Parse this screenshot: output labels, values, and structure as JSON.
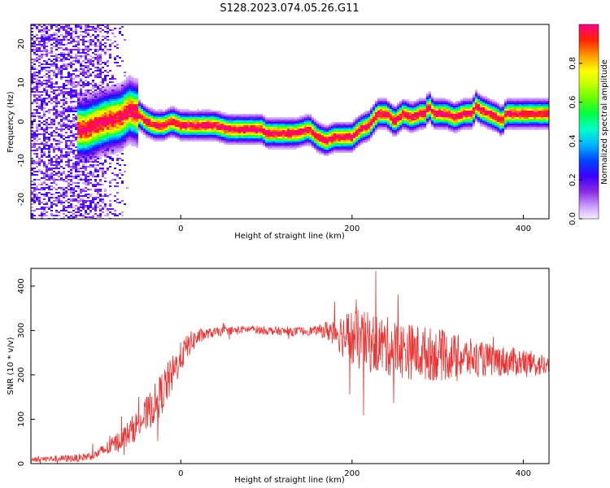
{
  "title": "S128.2023.074.05.26.G11",
  "chart_data": [
    {
      "type": "heatmap",
      "xlabel": "Height of straight line (km)",
      "ylabel": "Frequency (Hz)",
      "xlim": [
        -175,
        430
      ],
      "ylim": [
        -25,
        25
      ],
      "x_ticks": [
        0,
        200,
        400
      ],
      "y_ticks": [
        -20,
        -10,
        0,
        10,
        20
      ],
      "y_tick_labels": [
        "-20",
        "-10",
        "0",
        "10",
        "20"
      ],
      "colorbar": {
        "label": "Normalized spectral amplitude",
        "ticks": [
          0.0,
          0.2,
          0.4,
          0.6,
          0.8
        ],
        "tick_labels": [
          "0.0",
          "0.2",
          "0.4",
          "0.6",
          "0.8"
        ],
        "range": [
          0,
          1
        ],
        "colors": [
          "#f2e6ff",
          "#cc99ff",
          "#8a2be2",
          "#3b00ff",
          "#0044ff",
          "#00c8ff",
          "#00ff88",
          "#22ff00",
          "#b4ff00",
          "#ffff00",
          "#ff9900",
          "#ff2200",
          "#ff0088"
        ]
      },
      "ridge": {
        "x": [
          -110,
          -90,
          -70,
          -60,
          -50,
          -40,
          -30,
          -20,
          -10,
          0,
          20,
          40,
          55,
          60,
          80,
          95,
          100,
          120,
          135,
          150,
          160,
          170,
          180,
          190,
          200,
          210,
          220,
          230,
          240,
          250,
          260,
          270,
          280,
          285,
          290,
          295,
          300,
          310,
          320,
          330,
          340,
          345,
          350,
          360,
          370,
          375,
          380,
          390,
          400,
          410,
          420,
          430
        ],
        "y": [
          -2,
          0,
          1,
          3,
          2,
          0,
          -1,
          -1,
          0,
          -1,
          -1,
          -1,
          -2,
          -2,
          -2,
          -2,
          -3,
          -3,
          -3,
          -2,
          -4,
          -5,
          -4,
          -4,
          -4,
          -2,
          -1,
          2,
          2,
          0,
          2,
          1,
          2,
          2,
          4,
          2,
          2,
          2,
          1,
          2,
          2,
          4,
          3,
          2,
          1,
          0,
          2,
          2,
          2,
          2,
          2,
          2
        ]
      }
    },
    {
      "type": "line",
      "xlabel": "Height of straight line (km)",
      "ylabel": "SNR (10 * v/v)",
      "xlim": [
        -175,
        430
      ],
      "ylim": [
        0,
        440
      ],
      "x_ticks": [
        0,
        200,
        400
      ],
      "y_ticks": [
        0,
        100,
        200,
        300,
        400
      ],
      "color": "#ee3333",
      "envelope": {
        "x": [
          -175,
          -120,
          -100,
          -80,
          -60,
          -40,
          -25,
          -10,
          0,
          10,
          20,
          30,
          40,
          60,
          80,
          100,
          130,
          160,
          180,
          200,
          230,
          260,
          300,
          350,
          400,
          430
        ],
        "y": [
          10,
          12,
          20,
          40,
          70,
          110,
          150,
          200,
          240,
          270,
          285,
          292,
          296,
          300,
          303,
          300,
          297,
          300,
          300,
          280,
          270,
          255,
          245,
          235,
          228,
          220
        ]
      },
      "noise": {
        "x": [
          -175,
          -100,
          -60,
          -20,
          0,
          30,
          60,
          160,
          180,
          200,
          260,
          300,
          350,
          430
        ],
        "amplitude": [
          6,
          10,
          30,
          50,
          35,
          12,
          9,
          10,
          35,
          70,
          65,
          60,
          40,
          25
        ]
      }
    }
  ]
}
